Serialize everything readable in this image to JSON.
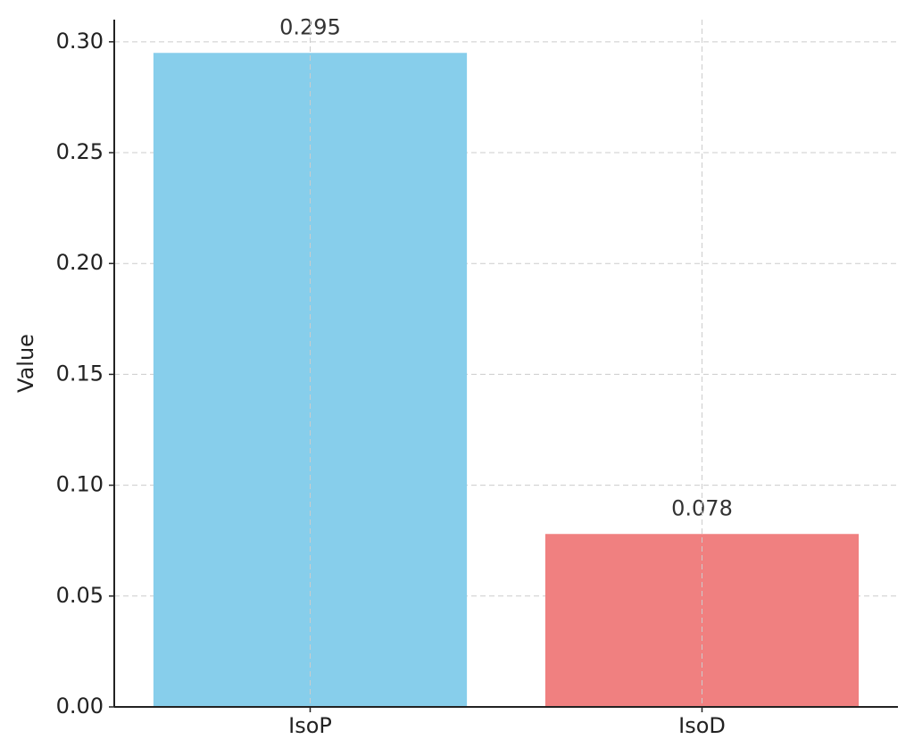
{
  "chart_data": {
    "type": "bar",
    "ylabel": "Value",
    "categories": [
      "IsoP",
      "IsoD"
    ],
    "values": [
      0.295,
      0.078
    ],
    "colors": [
      "#87ceeb",
      "#f08080"
    ],
    "ylim": [
      0,
      0.31
    ],
    "yticks": [
      {
        "value": 0,
        "label": "0.00"
      },
      0.05,
      {
        "value": 0.1,
        "label": "0.10"
      },
      0.15,
      {
        "value": 0.2,
        "label": "0.20"
      },
      0.25,
      {
        "value": 0.3,
        "label": "0.30"
      }
    ],
    "grid": true
  }
}
